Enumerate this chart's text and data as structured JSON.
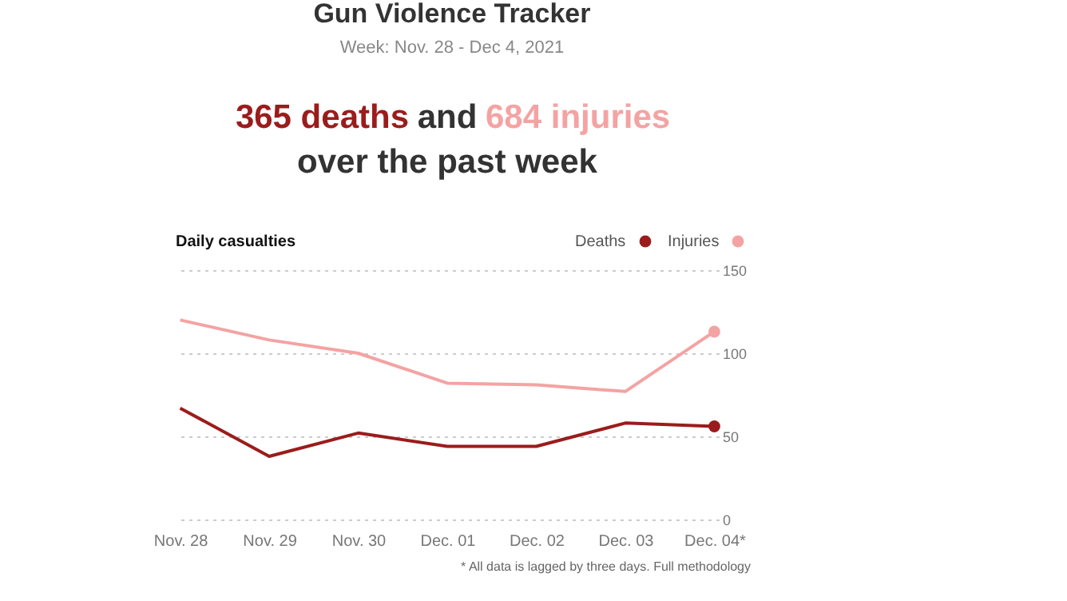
{
  "chart_data": {
    "type": "line",
    "title": "Gun Violence Tracker",
    "subtitle": "Week: Nov. 28 - Dec 4, 2021",
    "annotations": [
      "365 deaths",
      "and",
      "684 injuries",
      "over the past week",
      "Daily casualties",
      "* All data is lagged by three days. Full methodology"
    ],
    "categories": [
      "Nov. 28",
      "Nov. 29",
      "Nov. 30",
      "Dec. 01",
      "Dec. 02",
      "Dec. 03",
      "Dec. 04*"
    ],
    "series": [
      {
        "name": "Deaths",
        "color": "#9b1c1c",
        "values": [
          67,
          38,
          52,
          44,
          44,
          58,
          56
        ]
      },
      {
        "name": "Injuries",
        "color": "#f4a3a3",
        "values": [
          120,
          108,
          100,
          82,
          81,
          77,
          113
        ]
      }
    ],
    "ylim": [
      0,
      150
    ],
    "yticks": [
      0,
      50,
      100,
      150
    ],
    "grid": "y",
    "legend": "top right",
    "line_style": "solid"
  }
}
